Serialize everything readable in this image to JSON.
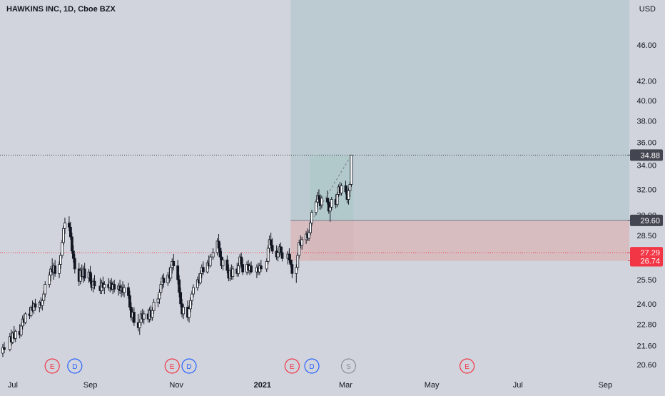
{
  "header": {
    "title": "HAWKINS INC, 1D, Cboe BZX",
    "currency": "USD"
  },
  "colors": {
    "background": "#d1d4dc",
    "profit_zone": "#b2c9cb",
    "target_zone": "#bccbd1",
    "loss_zone": "#d7bcc0",
    "candle": "#131722",
    "red_label": "#f23645",
    "dark_label": "#434651",
    "earnings": "#f23645",
    "dividend": "#2962ff",
    "split": "#8c8f98"
  },
  "chart_data": {
    "type": "candlestick",
    "title": "HAWKINS INC, 1D, Cboe BZX",
    "ylabel": "USD",
    "log_scale": true,
    "grid": false,
    "ylim": [
      20.2,
      52.0
    ],
    "xlim": [
      "2020-06-29",
      "2021-09-18"
    ],
    "x_ticks": [
      {
        "date": "2020-07-01",
        "label": "Jul",
        "bold": false
      },
      {
        "date": "2020-09-01",
        "label": "Sep",
        "bold": false
      },
      {
        "date": "2020-11-01",
        "label": "Nov",
        "bold": false
      },
      {
        "date": "2021-01-01",
        "label": "2021",
        "bold": true
      },
      {
        "date": "2021-03-01",
        "label": "Mar",
        "bold": false
      },
      {
        "date": "2021-05-01",
        "label": "May",
        "bold": false
      },
      {
        "date": "2021-07-01",
        "label": "Jul",
        "bold": false
      },
      {
        "date": "2021-09-01",
        "label": "Sep",
        "bold": false
      }
    ],
    "y_ticks": [
      20.6,
      21.6,
      22.8,
      24.0,
      25.5,
      28.5,
      30.0,
      32.0,
      34.0,
      36.0,
      38.0,
      40.0,
      42.0,
      46.0
    ],
    "price_markers": [
      {
        "value": 34.88,
        "label": "34.88",
        "style": "dark",
        "line": "dotted"
      },
      {
        "value": 29.6,
        "label": "29.60",
        "style": "dark",
        "line": "none"
      },
      {
        "value": 27.29,
        "label": "27.29",
        "style": "red",
        "line": "dotted-red"
      },
      {
        "value": 26.74,
        "label": "26.74",
        "style": "red",
        "line": "none"
      }
    ],
    "position": {
      "entry_date": "2021-01-21",
      "entry": 29.6,
      "stop": 26.74,
      "target_top": 52.0,
      "end_date": "2021-09-18",
      "reached_date": "2021-03-05",
      "reached_price": 34.88
    },
    "events": [
      {
        "date": "2020-08-05",
        "type": "E"
      },
      {
        "date": "2020-08-21",
        "type": "D"
      },
      {
        "date": "2020-10-29",
        "type": "E"
      },
      {
        "date": "2020-11-10",
        "type": "D"
      },
      {
        "date": "2021-01-22",
        "type": "E"
      },
      {
        "date": "2021-02-05",
        "type": "D"
      },
      {
        "date": "2021-03-03",
        "type": "S"
      },
      {
        "date": "2021-05-26",
        "type": "E"
      }
    ],
    "candles": [
      [
        "2020-07-01",
        21.2,
        21.7,
        21.0,
        21.5
      ],
      [
        "2020-07-02",
        21.5,
        21.8,
        21.2,
        21.4
      ],
      [
        "2020-07-06",
        21.4,
        22.3,
        21.3,
        22.1
      ],
      [
        "2020-07-07",
        22.1,
        22.5,
        21.6,
        21.8
      ],
      [
        "2020-07-08",
        21.8,
        22.4,
        21.7,
        22.3
      ],
      [
        "2020-07-09",
        22.3,
        22.7,
        21.9,
        22.0
      ],
      [
        "2020-07-10",
        22.0,
        22.5,
        21.8,
        22.4
      ],
      [
        "2020-07-13",
        22.4,
        22.8,
        22.0,
        22.2
      ],
      [
        "2020-07-14",
        22.2,
        22.9,
        22.1,
        22.7
      ],
      [
        "2020-07-15",
        22.7,
        23.3,
        22.5,
        23.1
      ],
      [
        "2020-07-16",
        23.1,
        23.4,
        22.7,
        22.9
      ],
      [
        "2020-07-17",
        22.9,
        23.5,
        22.8,
        23.4
      ],
      [
        "2020-07-20",
        23.4,
        23.8,
        23.1,
        23.3
      ],
      [
        "2020-07-21",
        23.3,
        23.9,
        23.2,
        23.8
      ],
      [
        "2020-07-22",
        23.8,
        24.2,
        23.5,
        23.6
      ],
      [
        "2020-07-23",
        23.6,
        24.1,
        23.4,
        24.0
      ],
      [
        "2020-07-24",
        24.0,
        24.3,
        23.6,
        23.8
      ],
      [
        "2020-07-27",
        23.8,
        24.2,
        23.5,
        24.1
      ],
      [
        "2020-07-28",
        24.1,
        24.4,
        23.7,
        23.9
      ],
      [
        "2020-07-29",
        23.9,
        24.3,
        23.6,
        24.2
      ],
      [
        "2020-07-30",
        24.2,
        24.8,
        24.0,
        24.6
      ],
      [
        "2020-07-31",
        24.6,
        25.4,
        24.4,
        25.2
      ],
      [
        "2020-08-03",
        25.2,
        26.0,
        25.0,
        25.8
      ],
      [
        "2020-08-04",
        25.8,
        26.4,
        25.4,
        26.2
      ],
      [
        "2020-08-05",
        26.2,
        26.9,
        25.8,
        26.0
      ],
      [
        "2020-08-06",
        26.0,
        26.6,
        25.5,
        26.4
      ],
      [
        "2020-08-07",
        26.4,
        26.8,
        25.7,
        25.9
      ],
      [
        "2020-08-10",
        25.9,
        26.7,
        25.6,
        26.5
      ],
      [
        "2020-08-11",
        26.5,
        27.3,
        26.2,
        27.1
      ],
      [
        "2020-08-12",
        27.1,
        28.2,
        26.9,
        28.0
      ],
      [
        "2020-08-13",
        28.0,
        29.2,
        27.8,
        29.0
      ],
      [
        "2020-08-14",
        29.0,
        29.8,
        28.6,
        29.4
      ],
      [
        "2020-08-17",
        29.4,
        29.9,
        28.8,
        29.1
      ],
      [
        "2020-08-18",
        29.1,
        29.5,
        28.2,
        28.4
      ],
      [
        "2020-08-19",
        28.4,
        28.7,
        27.2,
        27.4
      ],
      [
        "2020-08-20",
        27.4,
        27.8,
        26.6,
        26.9
      ],
      [
        "2020-08-21",
        26.9,
        27.2,
        25.9,
        26.2
      ],
      [
        "2020-08-24",
        26.2,
        26.6,
        25.1,
        25.4
      ],
      [
        "2020-08-25",
        25.4,
        26.3,
        25.2,
        26.1
      ],
      [
        "2020-08-26",
        26.1,
        26.5,
        25.5,
        25.7
      ],
      [
        "2020-08-27",
        25.7,
        26.4,
        25.3,
        26.2
      ],
      [
        "2020-08-28",
        26.2,
        26.6,
        25.4,
        25.6
      ],
      [
        "2020-08-31",
        25.6,
        26.2,
        25.3,
        26.0
      ],
      [
        "2020-09-01",
        26.0,
        26.4,
        25.2,
        25.4
      ],
      [
        "2020-09-02",
        25.4,
        25.9,
        24.8,
        25.0
      ],
      [
        "2020-09-03",
        25.0,
        25.6,
        24.7,
        25.4
      ],
      [
        "2020-09-04",
        25.4,
        25.8,
        24.9,
        25.1
      ],
      [
        "2020-09-08",
        25.1,
        25.6,
        24.6,
        24.8
      ],
      [
        "2020-09-09",
        24.8,
        25.5,
        24.6,
        25.3
      ],
      [
        "2020-09-10",
        25.3,
        25.7,
        24.8,
        25.0
      ],
      [
        "2020-09-11",
        25.0,
        25.4,
        24.6,
        25.2
      ],
      [
        "2020-09-14",
        25.2,
        25.6,
        24.8,
        25.0
      ],
      [
        "2020-09-15",
        25.0,
        25.5,
        24.7,
        25.3
      ],
      [
        "2020-09-16",
        25.3,
        25.6,
        24.8,
        24.9
      ],
      [
        "2020-09-17",
        24.9,
        25.4,
        24.6,
        25.2
      ],
      [
        "2020-09-18",
        25.2,
        25.5,
        24.7,
        24.9
      ],
      [
        "2020-09-21",
        24.9,
        25.3,
        24.5,
        25.1
      ],
      [
        "2020-09-22",
        25.1,
        25.5,
        24.6,
        24.8
      ],
      [
        "2020-09-23",
        24.8,
        25.2,
        24.4,
        25.0
      ],
      [
        "2020-09-24",
        25.0,
        25.4,
        24.5,
        24.7
      ],
      [
        "2020-09-25",
        24.7,
        25.2,
        24.4,
        25.0
      ],
      [
        "2020-09-28",
        25.0,
        25.3,
        24.3,
        24.5
      ],
      [
        "2020-09-29",
        24.5,
        24.8,
        23.6,
        23.8
      ],
      [
        "2020-09-30",
        23.8,
        24.1,
        23.0,
        23.2
      ],
      [
        "2020-10-01",
        23.2,
        23.7,
        22.9,
        23.5
      ],
      [
        "2020-10-02",
        23.5,
        23.8,
        22.7,
        22.9
      ],
      [
        "2020-10-05",
        22.9,
        23.4,
        22.4,
        22.6
      ],
      [
        "2020-10-06",
        22.6,
        23.1,
        22.2,
        22.9
      ],
      [
        "2020-10-07",
        22.9,
        23.6,
        22.7,
        23.4
      ],
      [
        "2020-10-08",
        23.4,
        23.7,
        22.9,
        23.1
      ],
      [
        "2020-10-09",
        23.1,
        23.6,
        22.8,
        23.4
      ],
      [
        "2020-10-12",
        23.4,
        23.7,
        22.9,
        23.1
      ],
      [
        "2020-10-13",
        23.1,
        23.8,
        22.9,
        23.6
      ],
      [
        "2020-10-14",
        23.6,
        23.9,
        23.0,
        23.2
      ],
      [
        "2020-10-15",
        23.2,
        23.8,
        23.0,
        23.6
      ],
      [
        "2020-10-16",
        23.6,
        24.3,
        23.4,
        24.1
      ],
      [
        "2020-10-19",
        24.1,
        24.6,
        23.8,
        24.3
      ],
      [
        "2020-10-20",
        24.3,
        24.9,
        24.0,
        24.7
      ],
      [
        "2020-10-21",
        24.7,
        25.4,
        24.5,
        25.2
      ],
      [
        "2020-10-22",
        25.2,
        25.8,
        24.9,
        25.6
      ],
      [
        "2020-10-23",
        25.6,
        25.9,
        25.0,
        25.3
      ],
      [
        "2020-10-26",
        25.3,
        26.0,
        25.1,
        25.8
      ],
      [
        "2020-10-27",
        25.8,
        26.3,
        25.3,
        25.6
      ],
      [
        "2020-10-28",
        25.6,
        26.5,
        25.4,
        26.3
      ],
      [
        "2020-10-29",
        26.3,
        26.9,
        25.9,
        26.7
      ],
      [
        "2020-10-30",
        26.7,
        27.2,
        26.1,
        26.4
      ],
      [
        "2020-11-02",
        26.4,
        26.8,
        25.2,
        25.5
      ],
      [
        "2020-11-03",
        25.5,
        25.8,
        24.4,
        24.7
      ],
      [
        "2020-11-04",
        24.7,
        25.0,
        23.8,
        24.0
      ],
      [
        "2020-11-05",
        24.0,
        24.3,
        23.2,
        23.4
      ],
      [
        "2020-11-06",
        23.4,
        24.0,
        23.1,
        23.8
      ],
      [
        "2020-11-09",
        23.8,
        24.2,
        23.0,
        23.2
      ],
      [
        "2020-11-10",
        23.2,
        23.9,
        22.9,
        23.7
      ],
      [
        "2020-11-11",
        23.7,
        24.4,
        23.5,
        24.2
      ],
      [
        "2020-11-12",
        24.2,
        24.8,
        23.9,
        24.6
      ],
      [
        "2020-11-13",
        24.6,
        25.2,
        24.4,
        25.0
      ],
      [
        "2020-11-16",
        25.0,
        25.7,
        24.8,
        25.5
      ],
      [
        "2020-11-17",
        25.5,
        25.9,
        25.1,
        25.3
      ],
      [
        "2020-11-18",
        25.3,
        26.1,
        25.2,
        25.9
      ],
      [
        "2020-11-19",
        25.9,
        26.5,
        25.6,
        26.3
      ],
      [
        "2020-11-20",
        26.3,
        26.7,
        25.8,
        26.0
      ],
      [
        "2020-11-23",
        26.0,
        26.8,
        25.9,
        26.6
      ],
      [
        "2020-11-24",
        26.6,
        27.1,
        26.2,
        26.4
      ],
      [
        "2020-11-25",
        26.4,
        27.2,
        26.3,
        27.0
      ],
      [
        "2020-11-27",
        27.0,
        27.6,
        26.8,
        27.3
      ],
      [
        "2020-11-30",
        27.3,
        28.3,
        27.1,
        28.1
      ],
      [
        "2020-12-01",
        28.1,
        28.6,
        27.4,
        27.6
      ],
      [
        "2020-12-02",
        27.6,
        28.0,
        26.8,
        27.0
      ],
      [
        "2020-12-03",
        27.0,
        27.4,
        26.2,
        26.4
      ],
      [
        "2020-12-04",
        26.4,
        27.0,
        26.1,
        26.8
      ],
      [
        "2020-12-07",
        26.8,
        27.1,
        25.9,
        26.1
      ],
      [
        "2020-12-08",
        26.1,
        26.5,
        25.4,
        25.6
      ],
      [
        "2020-12-09",
        25.6,
        26.3,
        25.4,
        26.1
      ],
      [
        "2020-12-10",
        26.1,
        26.5,
        25.5,
        25.7
      ],
      [
        "2020-12-11",
        25.7,
        26.4,
        25.5,
        26.2
      ],
      [
        "2020-12-14",
        26.2,
        26.6,
        25.7,
        25.9
      ],
      [
        "2020-12-15",
        25.9,
        26.6,
        25.7,
        26.4
      ],
      [
        "2020-12-16",
        26.4,
        27.2,
        26.2,
        27.0
      ],
      [
        "2020-12-17",
        27.0,
        27.3,
        26.3,
        26.5
      ],
      [
        "2020-12-18",
        26.5,
        26.9,
        25.8,
        26.0
      ],
      [
        "2020-12-21",
        26.0,
        26.7,
        25.8,
        26.5
      ],
      [
        "2020-12-22",
        26.5,
        26.8,
        25.9,
        26.1
      ],
      [
        "2020-12-23",
        26.1,
        26.6,
        25.8,
        26.4
      ],
      [
        "2020-12-24",
        26.4,
        26.7,
        25.9,
        26.0
      ],
      [
        "2020-12-28",
        26.0,
        26.5,
        25.6,
        26.3
      ],
      [
        "2020-12-29",
        26.3,
        26.6,
        25.8,
        26.0
      ],
      [
        "2020-12-30",
        26.0,
        26.6,
        25.8,
        26.4
      ],
      [
        "2020-12-31",
        26.4,
        26.8,
        26.0,
        26.2
      ],
      [
        "2021-01-04",
        26.2,
        26.9,
        26.0,
        26.7
      ],
      [
        "2021-01-05",
        26.7,
        27.8,
        26.5,
        27.6
      ],
      [
        "2021-01-06",
        27.6,
        28.5,
        27.3,
        28.2
      ],
      [
        "2021-01-07",
        28.2,
        28.7,
        27.6,
        27.8
      ],
      [
        "2021-01-08",
        27.8,
        28.3,
        27.2,
        27.4
      ],
      [
        "2021-01-11",
        27.4,
        27.8,
        26.8,
        27.0
      ],
      [
        "2021-01-12",
        27.0,
        27.6,
        26.7,
        27.3
      ],
      [
        "2021-01-13",
        27.3,
        27.9,
        27.0,
        27.7
      ],
      [
        "2021-01-14",
        27.7,
        28.0,
        27.1,
        27.3
      ],
      [
        "2021-01-15",
        27.3,
        27.7,
        26.7,
        26.9
      ],
      [
        "2021-01-19",
        26.9,
        27.4,
        26.5,
        27.2
      ],
      [
        "2021-01-20",
        27.2,
        27.6,
        26.6,
        26.8
      ],
      [
        "2021-01-21",
        26.8,
        27.2,
        26.3,
        26.5
      ],
      [
        "2021-01-22",
        26.5,
        26.8,
        25.6,
        25.9
      ],
      [
        "2021-01-25",
        25.9,
        26.5,
        25.3,
        26.3
      ],
      [
        "2021-01-26",
        26.3,
        27.3,
        26.1,
        27.1
      ],
      [
        "2021-01-27",
        27.1,
        28.2,
        26.9,
        28.0
      ],
      [
        "2021-01-28",
        28.0,
        28.5,
        27.6,
        27.8
      ],
      [
        "2021-01-29",
        27.8,
        28.4,
        27.5,
        28.2
      ],
      [
        "2021-02-01",
        28.2,
        28.8,
        27.9,
        28.6
      ],
      [
        "2021-02-02",
        28.6,
        29.0,
        28.1,
        28.3
      ],
      [
        "2021-02-03",
        28.3,
        28.9,
        28.1,
        28.7
      ],
      [
        "2021-02-04",
        28.7,
        29.6,
        28.5,
        29.4
      ],
      [
        "2021-02-05",
        29.4,
        30.4,
        29.2,
        30.2
      ],
      [
        "2021-02-08",
        30.2,
        31.2,
        30.0,
        31.0
      ],
      [
        "2021-02-09",
        31.0,
        31.8,
        30.6,
        31.5
      ],
      [
        "2021-02-10",
        31.5,
        32.0,
        30.9,
        31.2
      ],
      [
        "2021-02-11",
        31.2,
        31.6,
        30.4,
        30.7
      ],
      [
        "2021-02-12",
        30.7,
        31.5,
        30.5,
        31.3
      ],
      [
        "2021-02-16",
        31.3,
        31.9,
        30.8,
        31.0
      ],
      [
        "2021-02-17",
        31.0,
        31.3,
        30.1,
        30.3
      ],
      [
        "2021-02-18",
        30.3,
        30.8,
        29.5,
        30.6
      ],
      [
        "2021-02-19",
        30.6,
        31.4,
        30.4,
        31.2
      ],
      [
        "2021-02-22",
        31.2,
        31.6,
        30.5,
        30.8
      ],
      [
        "2021-02-23",
        30.8,
        31.8,
        30.6,
        31.6
      ],
      [
        "2021-02-24",
        31.6,
        32.4,
        31.4,
        32.2
      ],
      [
        "2021-02-25",
        32.2,
        32.6,
        31.5,
        31.7
      ],
      [
        "2021-02-26",
        31.7,
        32.5,
        31.5,
        32.3
      ],
      [
        "2021-03-01",
        32.3,
        32.7,
        31.6,
        31.8
      ],
      [
        "2021-03-02",
        31.8,
        32.3,
        30.9,
        31.2
      ],
      [
        "2021-03-03",
        31.2,
        32.1,
        30.8,
        31.9
      ],
      [
        "2021-03-04",
        31.9,
        32.6,
        31.4,
        32.4
      ],
      [
        "2021-03-05",
        32.4,
        34.9,
        32.2,
        34.88
      ]
    ]
  }
}
